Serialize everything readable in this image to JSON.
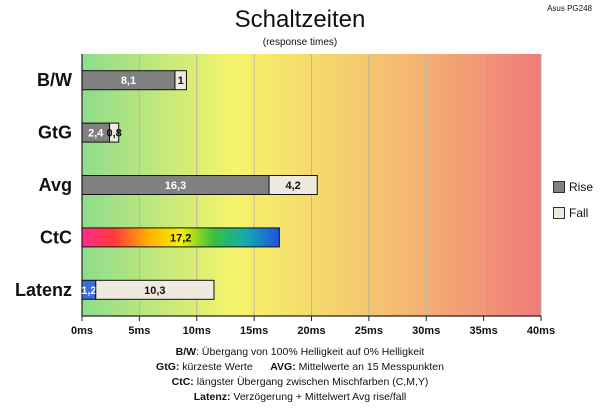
{
  "chart_data": {
    "type": "bar",
    "orientation": "horizontal",
    "stacked": true,
    "title": "Schaltzeiten",
    "subtitle": "(response times)",
    "corner_label": "Asus PG248",
    "categories": [
      "B/W",
      "GtG",
      "Avg",
      "CtC",
      "Latenz"
    ],
    "series": [
      {
        "name": "Rise",
        "values": [
          8.1,
          2.4,
          16.3,
          17.2,
          1.2
        ],
        "labels": [
          "8,1",
          "2,4",
          "16,3",
          "17,2",
          "1,2"
        ],
        "color": "#808080"
      },
      {
        "name": "Fall",
        "values": [
          1,
          0.8,
          4.2,
          null,
          10.3
        ],
        "labels": [
          "1",
          "0,8",
          "4,2",
          "",
          "10,3"
        ],
        "color": "#eeeae0"
      }
    ],
    "special_fills": {
      "CtC": "rainbow",
      "Latenz_first_segment": "#3a6bd8"
    },
    "xlim": [
      0,
      40
    ],
    "x_ticks": [
      0,
      5,
      10,
      15,
      20,
      25,
      30,
      35,
      40
    ],
    "x_tick_labels": [
      "0ms",
      "5ms",
      "10ms",
      "15ms",
      "20ms",
      "25ms",
      "30ms",
      "35ms",
      "40ms"
    ],
    "grid": true,
    "background_gradient": [
      "#8ddc8d",
      "#f6f46a",
      "#f4c070",
      "#f07a7a"
    ],
    "legend": {
      "position": "right",
      "entries": [
        "Rise",
        "Fall"
      ]
    }
  },
  "notes": [
    {
      "bold": "B/W",
      "text": ":  Übergang von 100% Helligkeit auf 0% Helligkeit"
    },
    {
      "bold": "GtG:",
      "text": " kürzeste  Werte",
      "bold2": "AVG:",
      "text2": " Mittelwerte  an 15 Messpunkten"
    },
    {
      "bold": "CtC:",
      "text": " längster Übergang  zwischen Mischfarben  (C,M,Y)"
    },
    {
      "bold": "Latenz:",
      "text": " Verzögerung  + Mittelwert Avg rise/fall"
    }
  ]
}
